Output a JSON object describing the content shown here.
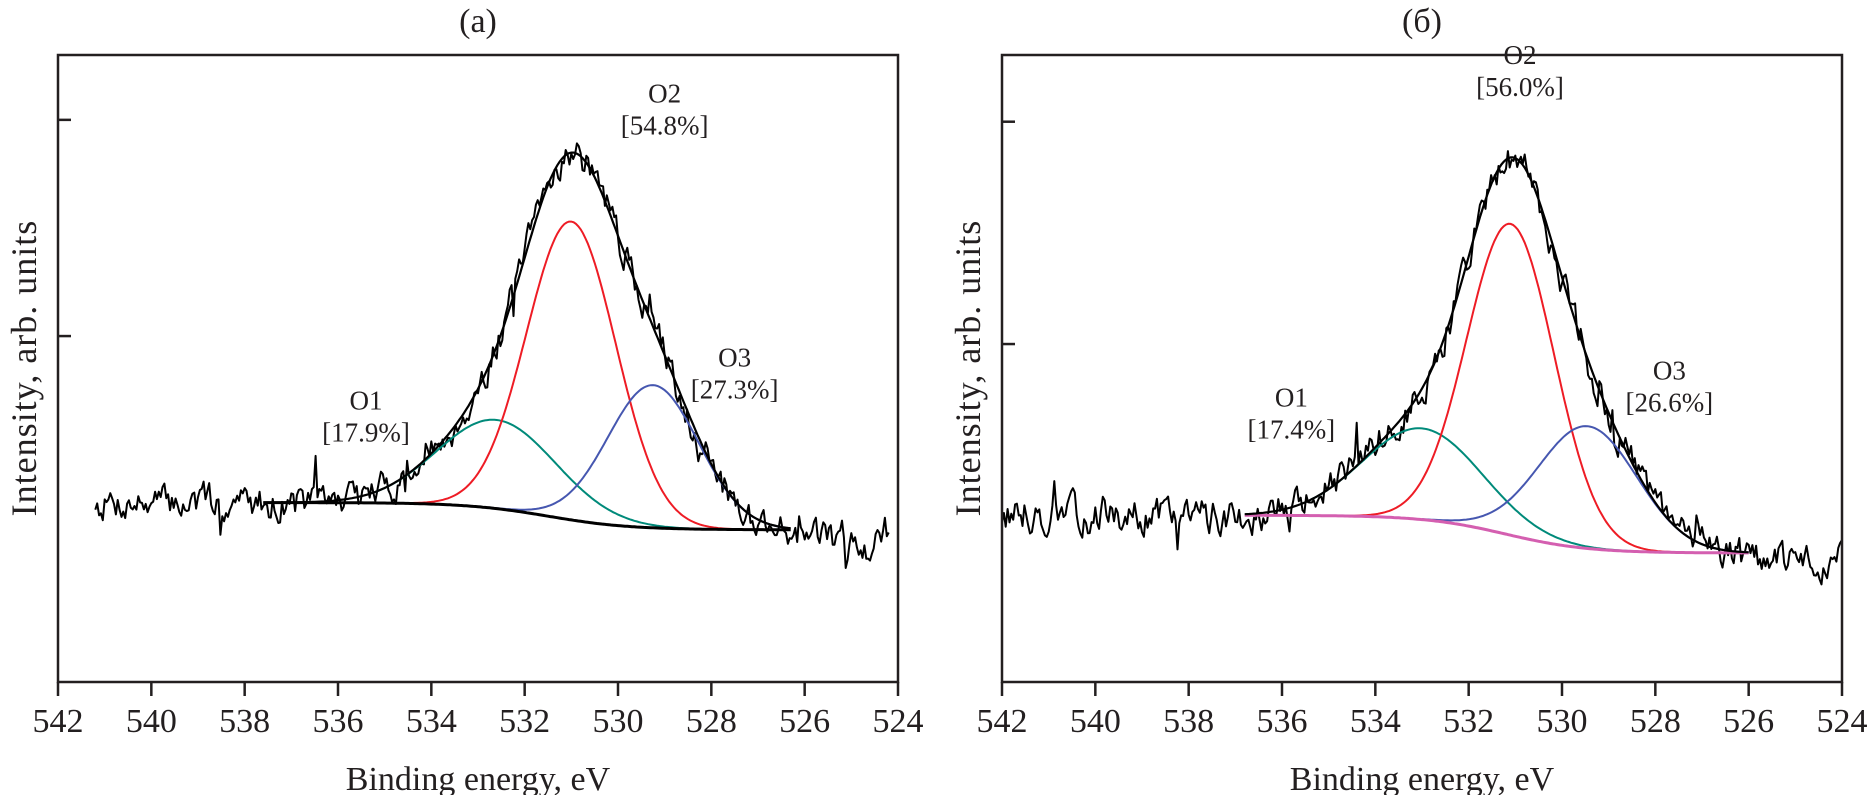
{
  "chart_data": [
    {
      "type": "line",
      "title": "(a)",
      "xlabel": "Binding energy, eV",
      "ylabel": "Intensity, arb. units",
      "xlim": [
        542,
        524
      ],
      "x_ticks": [
        "542",
        "540",
        "538",
        "536",
        "534",
        "532",
        "530",
        "528",
        "526",
        "524"
      ],
      "y_tick_values": [
        0.5,
        1.0
      ],
      "ylim": [
        -0.3,
        1.15
      ],
      "grid": false,
      "legend": "none",
      "experimental": {
        "name": "Experimental spectrum",
        "color": "#000000",
        "x_range": [
          541.2,
          524.2
        ],
        "noise": 0.07,
        "seed": 7
      },
      "background": {
        "name": "Background",
        "color": "#000000",
        "x_range": [
          537.6,
          526.3
        ],
        "left_level": 0.115,
        "right_level": 0.052,
        "center": 531.5,
        "width": 2.2
      },
      "envelope": {
        "name": "Envelope",
        "color": "#000000"
      },
      "components": [
        {
          "name": "O1",
          "percent": "[17.9%]",
          "center": 532.6,
          "height": 0.205,
          "fwhm": 3.0,
          "color": "#008a7a",
          "x_range": [
            535.2,
            528.2
          ]
        },
        {
          "name": "O2",
          "percent": "[54.8%]",
          "center": 531.0,
          "height": 0.69,
          "fwhm": 2.25,
          "color": "#ee1c25",
          "x_range": [
            535.0,
            526.8
          ]
        },
        {
          "name": "O3",
          "percent": "[27.3%]",
          "center": 529.25,
          "height": 0.33,
          "fwhm": 2.3,
          "color": "#4657b0",
          "x_range": [
            533.0,
            526.4
          ]
        }
      ],
      "annotations": [
        {
          "label": "O1",
          "value": "[17.9%]",
          "x": 535.4,
          "y": 0.33
        },
        {
          "label": "O2",
          "value": "[54.8%]",
          "x": 529.0,
          "y": 1.04
        },
        {
          "label": "O3",
          "value": "[27.3%]",
          "x": 527.5,
          "y": 0.43
        }
      ]
    },
    {
      "type": "line",
      "title": "(б)",
      "xlabel": "Binding energy, eV",
      "ylabel": "Intensity, arb. units",
      "xlim": [
        542,
        524
      ],
      "x_ticks": [
        "542",
        "540",
        "538",
        "536",
        "534",
        "532",
        "530",
        "528",
        "526",
        "524"
      ],
      "y_tick_values": [
        0.5,
        1.0
      ],
      "ylim": [
        -0.26,
        1.15
      ],
      "grid": false,
      "legend": "none",
      "experimental": {
        "name": "Experimental spectrum",
        "color": "#000000",
        "x_range": [
          542.0,
          524.0
        ],
        "noise": 0.07,
        "seed": 13
      },
      "background": {
        "name": "Background",
        "color": "#d45fb0",
        "x_range": [
          536.8,
          526.0
        ],
        "left_level": 0.115,
        "right_level": 0.03,
        "center": 531.2,
        "width": 2.2
      },
      "envelope": {
        "name": "Envelope",
        "color": "#000000"
      },
      "components": [
        {
          "name": "O1",
          "percent": "[17.4%]",
          "center": 533.0,
          "height": 0.205,
          "fwhm": 3.0,
          "color": "#008a7a",
          "x_range": [
            535.4,
            528.2
          ]
        },
        {
          "name": "O2",
          "percent": "[56.0%]",
          "center": 531.1,
          "height": 0.7,
          "fwhm": 2.2,
          "color": "#ee1c25",
          "x_range": [
            535.0,
            527.2
          ]
        },
        {
          "name": "O3",
          "percent": "[26.6%]",
          "center": 529.45,
          "height": 0.275,
          "fwhm": 2.5,
          "color": "#4657b0",
          "x_range": [
            533.0,
            526.0
          ]
        }
      ],
      "annotations": [
        {
          "label": "O1",
          "value": "[17.4%]",
          "x": 535.8,
          "y": 0.36
        },
        {
          "label": "O2",
          "value": "[56.0%]",
          "x": 530.9,
          "y": 1.13
        },
        {
          "label": "O3",
          "value": "[26.6%]",
          "x": 527.7,
          "y": 0.42
        }
      ]
    }
  ]
}
